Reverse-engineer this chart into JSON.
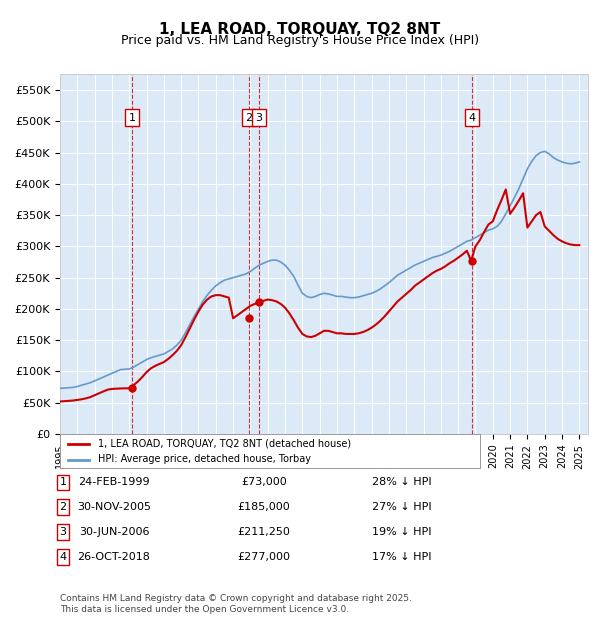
{
  "title": "1, LEA ROAD, TORQUAY, TQ2 8NT",
  "subtitle": "Price paid vs. HM Land Registry's House Price Index (HPI)",
  "background_color": "#dce9f7",
  "plot_bg_color": "#dce9f7",
  "legend_label_red": "1, LEA ROAD, TORQUAY, TQ2 8NT (detached house)",
  "legend_label_blue": "HPI: Average price, detached house, Torbay",
  "footer": "Contains HM Land Registry data © Crown copyright and database right 2025.\nThis data is licensed under the Open Government Licence v3.0.",
  "transactions": [
    {
      "num": 1,
      "date": "24-FEB-1999",
      "price": 73000,
      "pct": "28% ↓ HPI",
      "year": 1999.15
    },
    {
      "num": 2,
      "date": "30-NOV-2005",
      "price": 185000,
      "pct": "27% ↓ HPI",
      "year": 2005.92
    },
    {
      "num": 3,
      "date": "30-JUN-2006",
      "price": 211250,
      "pct": "19% ↓ HPI",
      "year": 2006.5
    },
    {
      "num": 4,
      "date": "26-OCT-2018",
      "price": 277000,
      "pct": "17% ↓ HPI",
      "year": 2018.82
    }
  ],
  "ylim": [
    0,
    575000
  ],
  "xlim_start": 1995.0,
  "xlim_end": 2025.5,
  "yticks": [
    0,
    50000,
    100000,
    150000,
    200000,
    250000,
    300000,
    350000,
    400000,
    450000,
    500000,
    550000
  ],
  "ytick_labels": [
    "£0",
    "£50K",
    "£100K",
    "£150K",
    "£200K",
    "£250K",
    "£300K",
    "£350K",
    "£400K",
    "£450K",
    "£500K",
    "£550K"
  ],
  "red_color": "#cc0000",
  "blue_color": "#6699cc",
  "dashed_color": "#cc0000",
  "hpi_data": {
    "years": [
      1995.0,
      1995.25,
      1995.5,
      1995.75,
      1996.0,
      1996.25,
      1996.5,
      1996.75,
      1997.0,
      1997.25,
      1997.5,
      1997.75,
      1998.0,
      1998.25,
      1998.5,
      1998.75,
      1999.0,
      1999.25,
      1999.5,
      1999.75,
      2000.0,
      2000.25,
      2000.5,
      2000.75,
      2001.0,
      2001.25,
      2001.5,
      2001.75,
      2002.0,
      2002.25,
      2002.5,
      2002.75,
      2003.0,
      2003.25,
      2003.5,
      2003.75,
      2004.0,
      2004.25,
      2004.5,
      2004.75,
      2005.0,
      2005.25,
      2005.5,
      2005.75,
      2006.0,
      2006.25,
      2006.5,
      2006.75,
      2007.0,
      2007.25,
      2007.5,
      2007.75,
      2008.0,
      2008.25,
      2008.5,
      2008.75,
      2009.0,
      2009.25,
      2009.5,
      2009.75,
      2010.0,
      2010.25,
      2010.5,
      2010.75,
      2011.0,
      2011.25,
      2011.5,
      2011.75,
      2012.0,
      2012.25,
      2012.5,
      2012.75,
      2013.0,
      2013.25,
      2013.5,
      2013.75,
      2014.0,
      2014.25,
      2014.5,
      2014.75,
      2015.0,
      2015.25,
      2015.5,
      2015.75,
      2016.0,
      2016.25,
      2016.5,
      2016.75,
      2017.0,
      2017.25,
      2017.5,
      2017.75,
      2018.0,
      2018.25,
      2018.5,
      2018.75,
      2019.0,
      2019.25,
      2019.5,
      2019.75,
      2020.0,
      2020.25,
      2020.5,
      2020.75,
      2021.0,
      2021.25,
      2021.5,
      2021.75,
      2022.0,
      2022.25,
      2022.5,
      2022.75,
      2023.0,
      2023.25,
      2023.5,
      2023.75,
      2024.0,
      2024.25,
      2024.5,
      2024.75,
      2025.0
    ],
    "values": [
      73000,
      73500,
      74000,
      74500,
      76000,
      78000,
      80000,
      82000,
      85000,
      88000,
      91000,
      94000,
      97000,
      100000,
      103000,
      103500,
      104000,
      107000,
      111000,
      115000,
      119000,
      122000,
      124000,
      126000,
      128000,
      132000,
      136000,
      142000,
      150000,
      162000,
      175000,
      188000,
      200000,
      212000,
      222000,
      230000,
      237000,
      242000,
      246000,
      248000,
      250000,
      252000,
      254000,
      256000,
      260000,
      265000,
      270000,
      273000,
      276000,
      278000,
      278000,
      275000,
      270000,
      262000,
      252000,
      238000,
      225000,
      220000,
      218000,
      220000,
      223000,
      225000,
      224000,
      222000,
      220000,
      220000,
      219000,
      218000,
      218000,
      219000,
      221000,
      223000,
      225000,
      228000,
      232000,
      237000,
      242000,
      248000,
      254000,
      258000,
      262000,
      266000,
      270000,
      273000,
      276000,
      279000,
      282000,
      284000,
      286000,
      289000,
      292000,
      296000,
      300000,
      304000,
      308000,
      310000,
      314000,
      318000,
      322000,
      326000,
      328000,
      332000,
      340000,
      352000,
      365000,
      378000,
      392000,
      408000,
      424000,
      436000,
      445000,
      450000,
      452000,
      448000,
      442000,
      438000,
      435000,
      433000,
      432000,
      433000,
      435000
    ]
  },
  "red_data": {
    "years": [
      1995.0,
      1995.25,
      1995.5,
      1995.75,
      1996.0,
      1996.25,
      1996.5,
      1996.75,
      1997.0,
      1997.25,
      1997.5,
      1997.75,
      1998.0,
      1998.25,
      1998.5,
      1998.75,
      1999.0,
      1999.25,
      1999.5,
      1999.75,
      2000.0,
      2000.25,
      2000.5,
      2000.75,
      2001.0,
      2001.25,
      2001.5,
      2001.75,
      2002.0,
      2002.25,
      2002.5,
      2002.75,
      2003.0,
      2003.25,
      2003.5,
      2003.75,
      2004.0,
      2004.25,
      2004.5,
      2004.75,
      2005.0,
      2005.25,
      2005.5,
      2005.75,
      2006.0,
      2006.25,
      2006.5,
      2006.75,
      2007.0,
      2007.25,
      2007.5,
      2007.75,
      2008.0,
      2008.25,
      2008.5,
      2008.75,
      2009.0,
      2009.25,
      2009.5,
      2009.75,
      2010.0,
      2010.25,
      2010.5,
      2010.75,
      2011.0,
      2011.25,
      2011.5,
      2011.75,
      2012.0,
      2012.25,
      2012.5,
      2012.75,
      2013.0,
      2013.25,
      2013.5,
      2013.75,
      2014.0,
      2014.25,
      2014.5,
      2014.75,
      2015.0,
      2015.25,
      2015.5,
      2015.75,
      2016.0,
      2016.25,
      2016.5,
      2016.75,
      2017.0,
      2017.25,
      2017.5,
      2017.75,
      2018.0,
      2018.25,
      2018.5,
      2018.75,
      2019.0,
      2019.25,
      2019.5,
      2019.75,
      2020.0,
      2020.25,
      2020.5,
      2020.75,
      2021.0,
      2021.25,
      2021.5,
      2021.75,
      2022.0,
      2022.25,
      2022.5,
      2022.75,
      2023.0,
      2023.25,
      2023.5,
      2023.75,
      2024.0,
      2024.25,
      2024.5,
      2024.75,
      2025.0
    ],
    "values": [
      52000,
      52500,
      53000,
      53500,
      54500,
      55500,
      57000,
      59000,
      62000,
      65000,
      68000,
      71000,
      72000,
      72500,
      72800,
      73000,
      73000,
      78000,
      84000,
      91000,
      99000,
      105000,
      109000,
      112000,
      115000,
      120000,
      126000,
      133000,
      142000,
      155000,
      169000,
      183000,
      196000,
      207000,
      215000,
      220000,
      222000,
      222000,
      220000,
      218000,
      185000,
      190000,
      195000,
      200000,
      205000,
      208000,
      211250,
      213000,
      215000,
      214000,
      212000,
      208000,
      202000,
      193000,
      182000,
      170000,
      160000,
      156000,
      155000,
      157000,
      161000,
      165000,
      165000,
      163000,
      161000,
      161000,
      160000,
      160000,
      160000,
      161000,
      163000,
      166000,
      170000,
      175000,
      181000,
      188000,
      196000,
      204000,
      212000,
      218000,
      224000,
      230000,
      237000,
      242000,
      247000,
      252000,
      257000,
      261000,
      264000,
      268000,
      273000,
      277000,
      282000,
      287000,
      293000,
      277000,
      300000,
      310000,
      323000,
      335000,
      340000,
      358000,
      374000,
      391000,
      352000,
      362000,
      373000,
      385000,
      330000,
      340000,
      350000,
      355000,
      332000,
      325000,
      318000,
      312000,
      308000,
      305000,
      303000,
      302000,
      302000
    ]
  }
}
